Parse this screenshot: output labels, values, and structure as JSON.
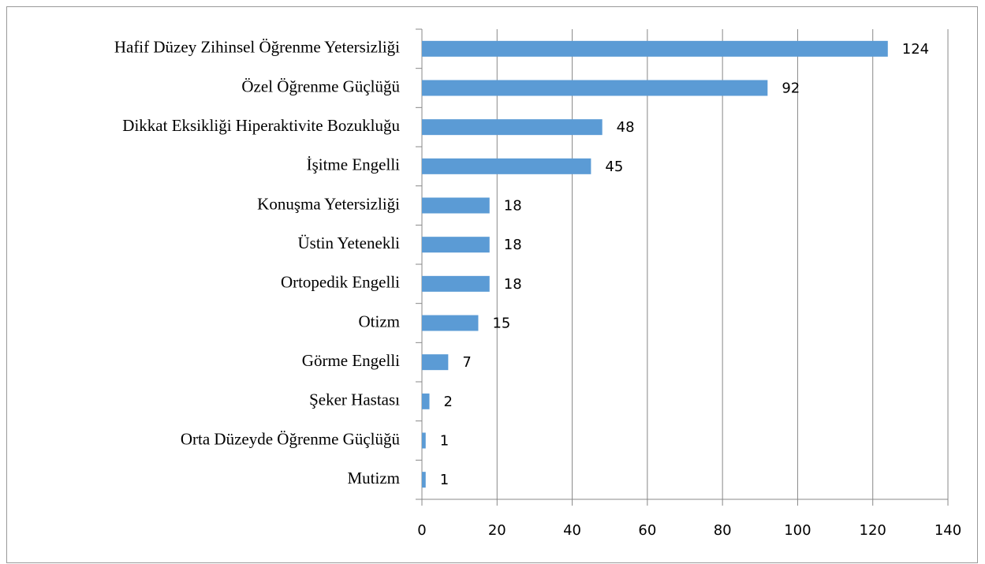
{
  "chart_data": {
    "type": "bar",
    "orientation": "horizontal",
    "categories": [
      "Hafif Düzey Zihinsel Öğrenme Yetersizliği",
      "Özel Öğrenme Güçlüğü",
      "Dikkat Eksikliği Hiperaktivite Bozukluğu",
      "İşitme Engelli",
      "Konuşma Yetersizliği",
      "Üstin Yetenekli",
      "Ortopedik Engelli",
      "Otizm",
      "Görme Engelli",
      "Şeker Hastası",
      "Orta Düzeyde Öğrenme Güçlüğü",
      "Mutizm"
    ],
    "values": [
      124,
      92,
      48,
      45,
      18,
      18,
      18,
      15,
      7,
      2,
      1,
      1
    ],
    "color": "#5b9bd5",
    "xlim": [
      0,
      140
    ],
    "xticks": [
      0,
      20,
      40,
      60,
      80,
      100,
      120,
      140
    ],
    "grid": true
  }
}
